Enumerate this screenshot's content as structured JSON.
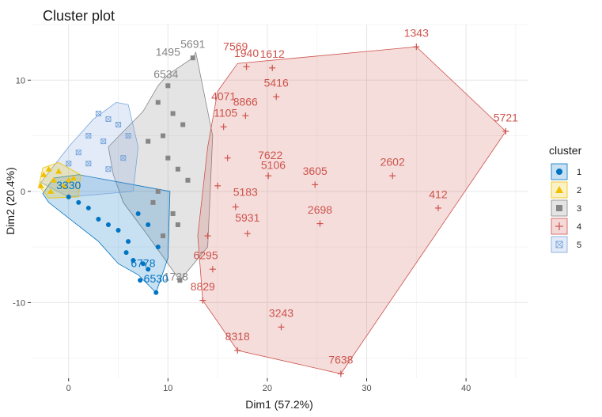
{
  "chart_data": {
    "type": "scatter",
    "title": "Cluster plot",
    "xlabel": "Dim1 (57.2%)",
    "ylabel": "Dim2 (20.4%)",
    "xlim": [
      -3.8,
      46.2
    ],
    "ylim": [
      -16.8,
      15.0
    ],
    "x_ticks": [
      0,
      10,
      20,
      30,
      40
    ],
    "y_ticks": [
      -10,
      0,
      10
    ],
    "grid": true,
    "legend": {
      "title": "cluster",
      "position": "right",
      "entries": [
        "1",
        "2",
        "3",
        "4",
        "5"
      ]
    },
    "colors": {
      "1": "#0073C2",
      "2": "#EFC000",
      "3": "#868686",
      "4": "#CD534C",
      "5": "#7AA6DC"
    },
    "clusters": [
      {
        "name": "1",
        "hull": [
          [
            -2.6,
            -0.2
          ],
          [
            -2.0,
            -1.0
          ],
          [
            3.0,
            -4.5
          ],
          [
            5.0,
            -6.5
          ],
          [
            7.0,
            -7.5
          ],
          [
            8.8,
            -9.1
          ],
          [
            10.0,
            -6.0
          ],
          [
            10.2,
            0.0
          ],
          [
            1.0,
            1.5
          ],
          [
            -1.5,
            1.2
          ]
        ],
        "points": [
          [
            8.8,
            -9.1
          ],
          [
            7.2,
            -8.0
          ],
          [
            8.0,
            -7.0
          ],
          [
            6.5,
            -6.2
          ],
          [
            7.5,
            -6.5
          ],
          [
            5.8,
            -5.5
          ],
          [
            6.0,
            -4.5
          ],
          [
            5.0,
            -3.5
          ],
          [
            4.0,
            -3.0
          ],
          [
            3.0,
            -2.5
          ],
          [
            2.0,
            -1.5
          ],
          [
            1.0,
            -1.0
          ],
          [
            0.0,
            -0.5
          ],
          [
            9.0,
            -5.0
          ],
          [
            8.0,
            -3.0
          ],
          [
            7.0,
            -2.0
          ]
        ],
        "labels": [
          {
            "text": "6530",
            "x": 8.8,
            "y": -8.2
          },
          {
            "text": "6778",
            "x": 7.5,
            "y": -6.8
          },
          {
            "text": "3330",
            "x": 0.0,
            "y": 0.2
          }
        ]
      },
      {
        "name": "2",
        "hull": [
          [
            -3.0,
            0.5
          ],
          [
            -2.6,
            2.1
          ],
          [
            -1.0,
            2.6
          ],
          [
            1.2,
            1.5
          ],
          [
            1.0,
            -0.5
          ],
          [
            -2.0,
            -0.6
          ]
        ],
        "points": [
          [
            -2.5,
            1.5
          ],
          [
            -2.0,
            2.0
          ],
          [
            -1.5,
            1.0
          ],
          [
            -1.0,
            1.8
          ],
          [
            -0.5,
            0.5
          ],
          [
            0.0,
            1.0
          ],
          [
            0.5,
            1.2
          ],
          [
            -2.8,
            0.5
          ],
          [
            -1.8,
            0.0
          ]
        ],
        "labels": []
      },
      {
        "name": "3",
        "hull": [
          [
            4.0,
            4.0
          ],
          [
            7.5,
            7.2
          ],
          [
            9.0,
            9.5
          ],
          [
            10.0,
            10.5
          ],
          [
            12.5,
            12.0
          ],
          [
            12.8,
            12.5
          ],
          [
            14.5,
            5.0
          ],
          [
            14.0,
            -5.0
          ],
          [
            11.2,
            -8.0
          ],
          [
            10.0,
            -6.5
          ],
          [
            8.0,
            -4.0
          ],
          [
            5.5,
            -1.0
          ],
          [
            4.5,
            1.5
          ]
        ],
        "points": [
          [
            12.5,
            12.0
          ],
          [
            10.0,
            9.5
          ],
          [
            9.0,
            8.0
          ],
          [
            10.5,
            7.0
          ],
          [
            11.5,
            6.0
          ],
          [
            9.5,
            5.0
          ],
          [
            8.0,
            4.5
          ],
          [
            10.0,
            3.0
          ],
          [
            11.0,
            2.0
          ],
          [
            12.0,
            1.0
          ],
          [
            9.0,
            0.0
          ],
          [
            8.5,
            -1.0
          ],
          [
            10.5,
            -2.0
          ],
          [
            11.0,
            -3.0
          ],
          [
            9.5,
            -4.0
          ],
          [
            11.2,
            -8.0
          ]
        ],
        "labels": [
          {
            "text": "5691",
            "x": 12.5,
            "y": 12.9
          },
          {
            "text": "1495",
            "x": 10.0,
            "y": 12.2
          },
          {
            "text": "6534",
            "x": 9.8,
            "y": 10.2
          },
          {
            "text": "1738",
            "x": 10.8,
            "y": -8.0
          }
        ]
      },
      {
        "name": "4",
        "hull": [
          [
            35.0,
            13.0
          ],
          [
            44.0,
            5.4
          ],
          [
            27.4,
            -16.4
          ],
          [
            17.0,
            -14.3
          ],
          [
            13.5,
            -9.8
          ],
          [
            13.0,
            -4.0
          ],
          [
            14.0,
            4.0
          ],
          [
            15.0,
            9.0
          ],
          [
            17.0,
            11.5
          ]
        ],
        "points": [
          [
            35.0,
            13.0
          ],
          [
            44.0,
            5.4
          ],
          [
            37.2,
            -1.5
          ],
          [
            32.6,
            1.4
          ],
          [
            27.4,
            -16.4
          ],
          [
            17.0,
            -14.3
          ],
          [
            13.5,
            -9.8
          ],
          [
            21.4,
            -12.2
          ],
          [
            25.3,
            -2.9
          ],
          [
            24.8,
            0.6
          ],
          [
            20.5,
            11.1
          ],
          [
            20.9,
            8.5
          ],
          [
            17.9,
            11.2
          ],
          [
            17.8,
            6.8
          ],
          [
            15.6,
            5.8
          ],
          [
            20.1,
            1.4
          ],
          [
            18.0,
            -3.8
          ],
          [
            16.8,
            -1.4
          ],
          [
            14.5,
            -7.0
          ],
          [
            14.0,
            -4.0
          ],
          [
            16.0,
            3.0
          ],
          [
            15.0,
            0.5
          ]
        ],
        "labels": [
          {
            "text": "1343",
            "x": 35.0,
            "y": 13.9
          },
          {
            "text": "5721",
            "x": 44.0,
            "y": 6.3
          },
          {
            "text": "412",
            "x": 37.2,
            "y": -0.6
          },
          {
            "text": "2602",
            "x": 32.6,
            "y": 2.3
          },
          {
            "text": "7638",
            "x": 27.4,
            "y": -15.5
          },
          {
            "text": "8318",
            "x": 17.0,
            "y": -13.4
          },
          {
            "text": "8829",
            "x": 13.5,
            "y": -8.9
          },
          {
            "text": "3243",
            "x": 21.4,
            "y": -11.3
          },
          {
            "text": "2698",
            "x": 25.3,
            "y": -2.0
          },
          {
            "text": "3605",
            "x": 24.8,
            "y": 1.5
          },
          {
            "text": "1612",
            "x": 20.5,
            "y": 12.0
          },
          {
            "text": "5416",
            "x": 20.9,
            "y": 9.4
          },
          {
            "text": "7569",
            "x": 16.8,
            "y": 12.7
          },
          {
            "text": "1940",
            "x": 17.9,
            "y": 12.1
          },
          {
            "text": "8866",
            "x": 17.8,
            "y": 7.7
          },
          {
            "text": "4071",
            "x": 15.6,
            "y": 8.2
          },
          {
            "text": "1105",
            "x": 15.8,
            "y": 6.7
          },
          {
            "text": "7622",
            "x": 20.3,
            "y": 2.9
          },
          {
            "text": "5106",
            "x": 20.6,
            "y": 2.0
          },
          {
            "text": "5183",
            "x": 17.8,
            "y": -0.4
          },
          {
            "text": "5931",
            "x": 18.0,
            "y": -2.7
          },
          {
            "text": "6295",
            "x": 13.8,
            "y": -6.1
          }
        ]
      },
      {
        "name": "5",
        "hull": [
          [
            -2.8,
            0.8
          ],
          [
            0.0,
            4.0
          ],
          [
            2.5,
            6.5
          ],
          [
            4.8,
            8.0
          ],
          [
            6.0,
            7.8
          ],
          [
            7.0,
            4.0
          ],
          [
            6.5,
            0.0
          ],
          [
            0.0,
            -0.5
          ]
        ],
        "points": [
          [
            3.0,
            7.0
          ],
          [
            4.0,
            6.5
          ],
          [
            2.0,
            5.0
          ],
          [
            1.0,
            3.5
          ],
          [
            0.0,
            2.5
          ],
          [
            5.0,
            6.0
          ],
          [
            3.5,
            4.5
          ],
          [
            5.5,
            3.0
          ],
          [
            2.0,
            2.5
          ],
          [
            4.0,
            2.0
          ],
          [
            6.0,
            5.0
          ]
        ],
        "labels": []
      }
    ]
  }
}
